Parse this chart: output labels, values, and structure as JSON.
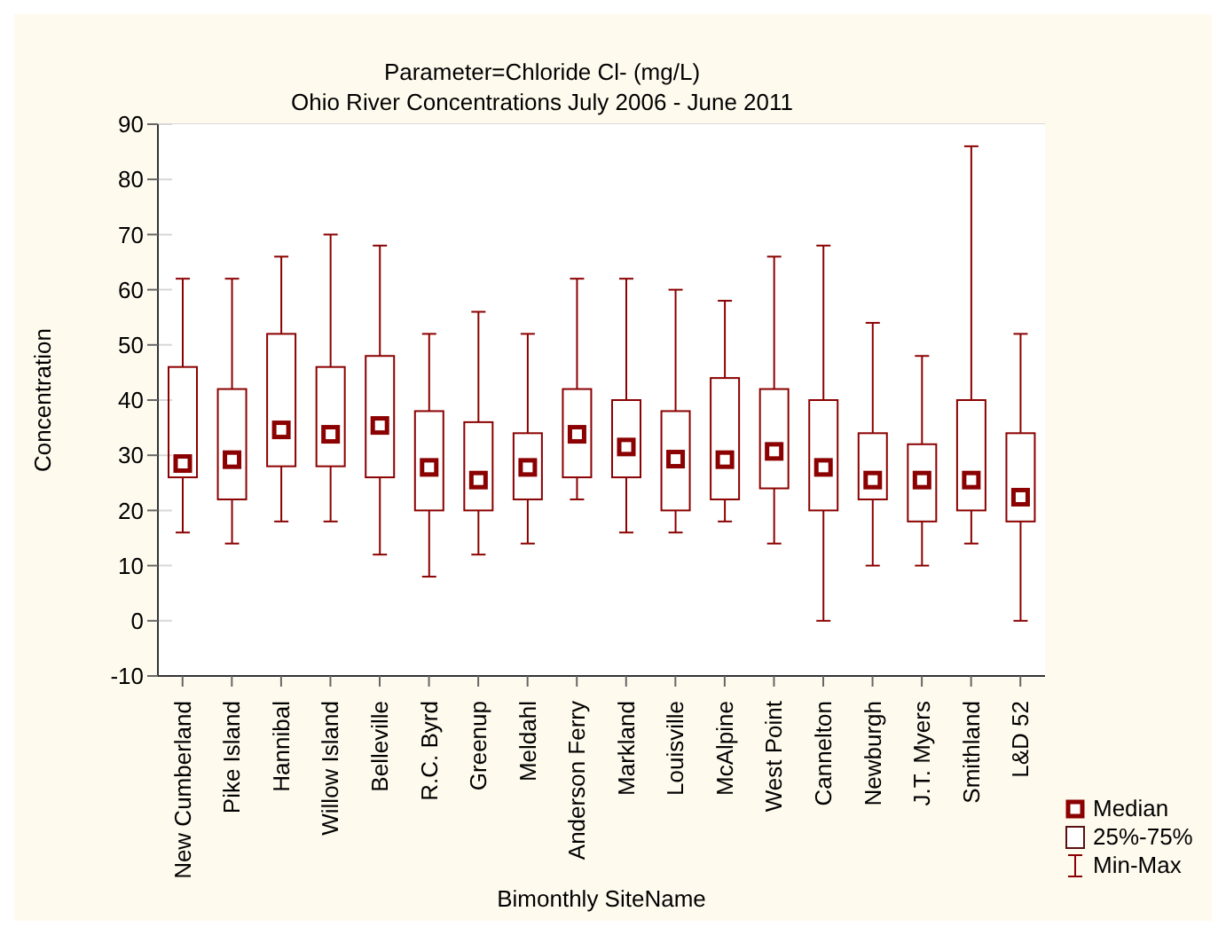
{
  "chart_data": {
    "type": "box",
    "title": "Parameter=Chloride Cl- (mg/L)",
    "subtitle": "Ohio River Concentrations July 2006 - June 2011",
    "xlabel": "Bimonthly SiteName",
    "ylabel": "Concentration",
    "categories": [
      "New Cumberland",
      "Pike Island",
      "Hannibal",
      "Willow Island",
      "Belleville",
      "R.C. Byrd",
      "Greenup",
      "Meldahl",
      "Anderson Ferry",
      "Markland",
      "Louisville",
      "McAlpine",
      "West Point",
      "Cannelton",
      "Newburgh",
      "J.T. Myers",
      "Smithland",
      "L&D 52"
    ],
    "boxes": [
      {
        "low": 16,
        "q1": 26,
        "median": 28.5,
        "q3": 46,
        "high": 62
      },
      {
        "low": 14,
        "q1": 22,
        "median": 29.2,
        "q3": 42,
        "high": 62
      },
      {
        "low": 18,
        "q1": 28,
        "median": 34.6,
        "q3": 52,
        "high": 66
      },
      {
        "low": 18,
        "q1": 28,
        "median": 33.8,
        "q3": 46,
        "high": 70
      },
      {
        "low": 12,
        "q1": 26,
        "median": 35.4,
        "q3": 48,
        "high": 68
      },
      {
        "low": 8,
        "q1": 20,
        "median": 27.8,
        "q3": 38,
        "high": 52
      },
      {
        "low": 12,
        "q1": 20,
        "median": 25.5,
        "q3": 36,
        "high": 56
      },
      {
        "low": 14,
        "q1": 22,
        "median": 27.8,
        "q3": 34,
        "high": 52
      },
      {
        "low": 22,
        "q1": 26,
        "median": 33.8,
        "q3": 42,
        "high": 62
      },
      {
        "low": 16,
        "q1": 26,
        "median": 31.5,
        "q3": 40,
        "high": 62
      },
      {
        "low": 16,
        "q1": 20,
        "median": 29.3,
        "q3": 38,
        "high": 60
      },
      {
        "low": 18,
        "q1": 22,
        "median": 29.2,
        "q3": 44,
        "high": 58
      },
      {
        "low": 14,
        "q1": 24,
        "median": 30.7,
        "q3": 42,
        "high": 66
      },
      {
        "low": 0,
        "q1": 20,
        "median": 27.8,
        "q3": 40,
        "high": 68
      },
      {
        "low": 10,
        "q1": 22,
        "median": 25.5,
        "q3": 34,
        "high": 54
      },
      {
        "low": 10,
        "q1": 18,
        "median": 25.5,
        "q3": 32,
        "high": 48
      },
      {
        "low": 14,
        "q1": 20,
        "median": 25.5,
        "q3": 40,
        "high": 86
      },
      {
        "low": 0,
        "q1": 18,
        "median": 22.4,
        "q3": 34,
        "high": 52
      }
    ],
    "color": "#8b0000",
    "ylim": [
      -10,
      90
    ],
    "yticks": [
      -10,
      0,
      10,
      20,
      30,
      40,
      50,
      60,
      70,
      80,
      90
    ],
    "grid": "y",
    "annotations": [
      "Median",
      "25%-75%",
      "Min-Max"
    ]
  }
}
